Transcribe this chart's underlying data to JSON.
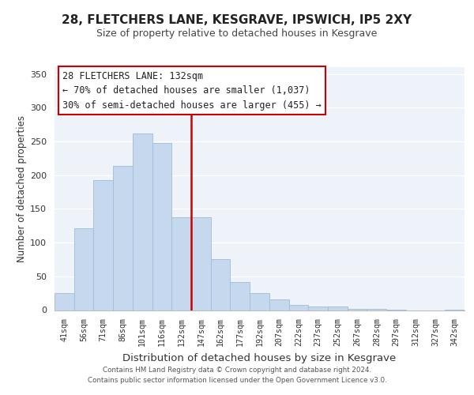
{
  "title1": "28, FLETCHERS LANE, KESGRAVE, IPSWICH, IP5 2XY",
  "title2": "Size of property relative to detached houses in Kesgrave",
  "xlabel": "Distribution of detached houses by size in Kesgrave",
  "ylabel": "Number of detached properties",
  "bar_labels": [
    "41sqm",
    "56sqm",
    "71sqm",
    "86sqm",
    "101sqm",
    "116sqm",
    "132sqm",
    "147sqm",
    "162sqm",
    "177sqm",
    "192sqm",
    "207sqm",
    "222sqm",
    "237sqm",
    "252sqm",
    "267sqm",
    "282sqm",
    "297sqm",
    "312sqm",
    "327sqm",
    "342sqm"
  ],
  "bar_values": [
    25,
    121,
    193,
    214,
    262,
    248,
    137,
    137,
    76,
    41,
    25,
    16,
    8,
    5,
    5,
    2,
    2,
    1,
    0,
    0,
    1
  ],
  "bar_color": "#c5d8ed",
  "bar_edge_color": "#a0bcd8",
  "highlight_index": 6,
  "highlight_color": "#cc0000",
  "ylim": [
    0,
    360
  ],
  "yticks": [
    0,
    50,
    100,
    150,
    200,
    250,
    300,
    350
  ],
  "annotation_title": "28 FLETCHERS LANE: 132sqm",
  "annotation_line1": "← 70% of detached houses are smaller (1,037)",
  "annotation_line2": "30% of semi-detached houses are larger (455) →",
  "annotation_box_color": "#ffffff",
  "annotation_box_edge": "#cc0000",
  "footer1": "Contains HM Land Registry data © Crown copyright and database right 2024.",
  "footer2": "Contains public sector information licensed under the Open Government Licence v3.0.",
  "background_color": "#ffffff",
  "plot_bg_color": "#eef3fa",
  "grid_color": "#ffffff"
}
